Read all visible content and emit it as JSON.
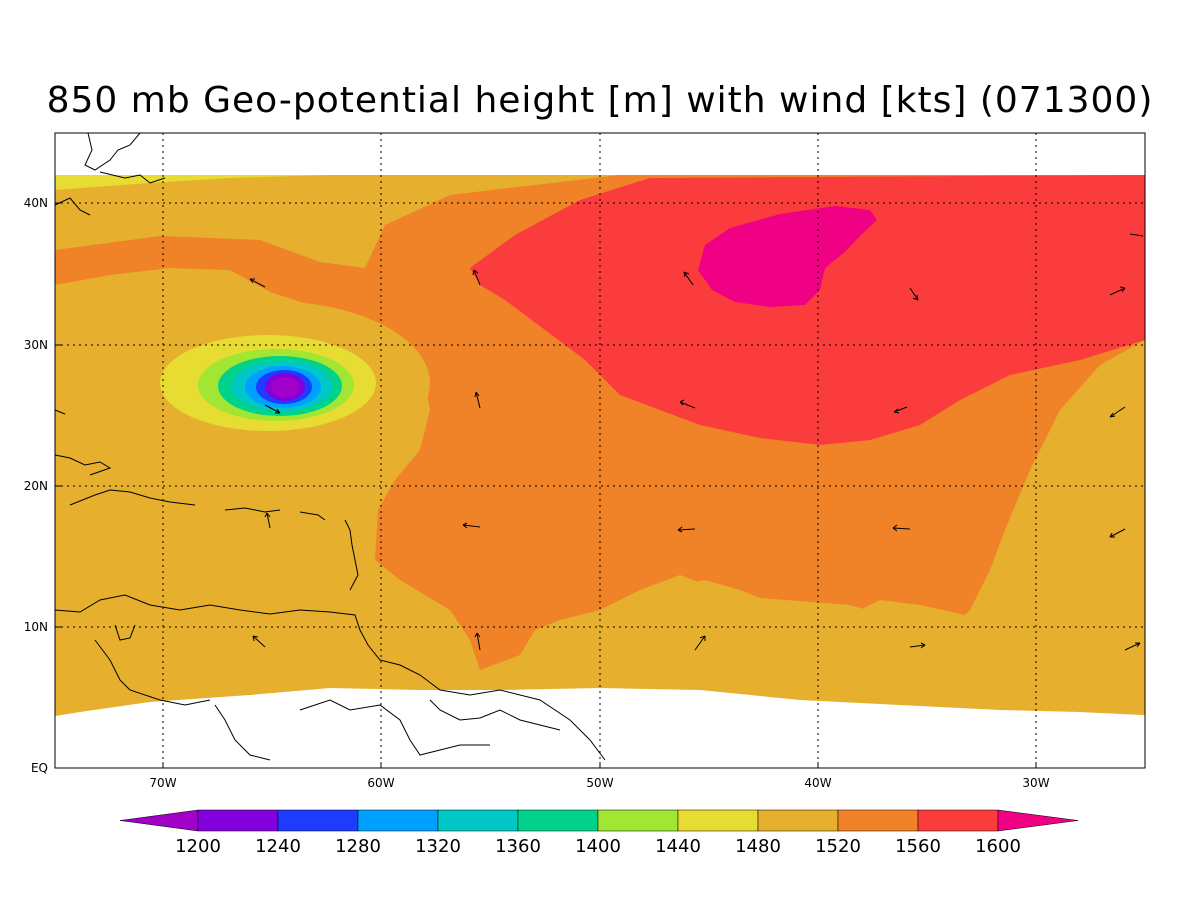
{
  "title": "850 mb Geo-potential height [m] with wind [kts] (071300)",
  "map": {
    "lon_labels": [
      "70W",
      "60W",
      "50W",
      "40W",
      "30W"
    ],
    "lat_labels": [
      "40N",
      "30N",
      "20N",
      "10N",
      "EQ"
    ],
    "grid_lines": "dotted",
    "projection": "cylindrical equidistant"
  },
  "colorbar": {
    "levels": [
      "1200",
      "1240",
      "1280",
      "1320",
      "1360",
      "1400",
      "1440",
      "1480",
      "1520",
      "1560",
      "1600"
    ],
    "colors": [
      "#a000c8",
      "#8200dc",
      "#1e3cff",
      "#00a0ff",
      "#00c8c8",
      "#00d28c",
      "#a0e632",
      "#e6dc32",
      "#e6af2d",
      "#f08228",
      "#fa3c3c",
      "#f00082"
    ]
  },
  "chart_data": {
    "type": "heatmap",
    "title": "850 mb Geo-potential height [m] with wind [kts] (071300)",
    "variable": "850 mb geopotential height [m]",
    "overlay": "wind vectors [kts]",
    "xlim": [
      "75W",
      "25W"
    ],
    "ylim": [
      "EQ",
      "45N"
    ],
    "contour_levels": [
      1200,
      1240,
      1280,
      1320,
      1360,
      1400,
      1440,
      1480,
      1520,
      1560,
      1600
    ],
    "features": [
      {
        "kind": "low center",
        "lon": -64.5,
        "lat": 27,
        "value_range": "below 1240"
      },
      {
        "kind": "high center",
        "lon": -42,
        "lat": 36,
        "value_range": "above 1600"
      }
    ]
  }
}
